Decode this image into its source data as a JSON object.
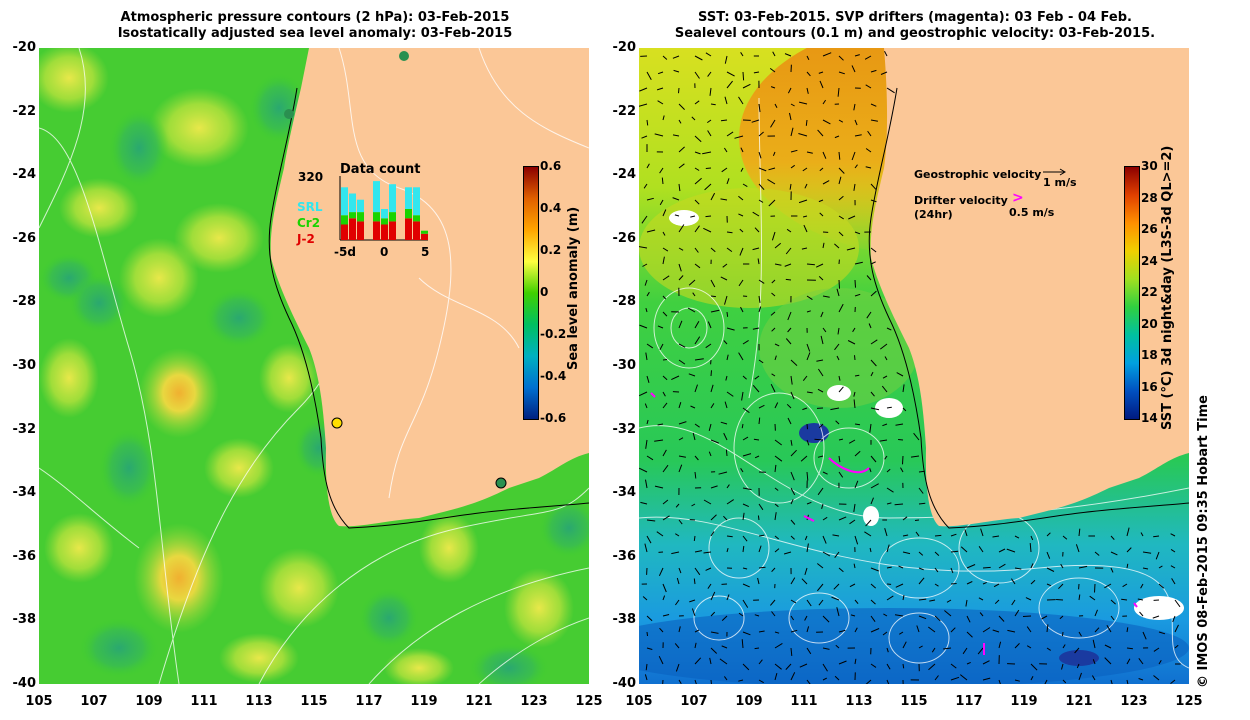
{
  "left_panel": {
    "title_line1": "Atmospheric pressure contours (2 hPa): 03-Feb-2015",
    "title_line2": "Isostatically adjusted sea level anomaly: 03-Feb-2015",
    "inset": {
      "label_320": "320",
      "title": "Data count",
      "legend": [
        {
          "name": "SRL",
          "color": "#33e6ee"
        },
        {
          "name": "Cr2",
          "color": "#19d300"
        },
        {
          "name": "J-2",
          "color": "#e00000"
        }
      ],
      "xticks": [
        "-5d",
        "0",
        "5"
      ],
      "bars": [
        {
          "day": -5,
          "J-2": 0.25,
          "Cr2": 0.15,
          "SRL": 0.45
        },
        {
          "day": -4,
          "J-2": 0.35,
          "Cr2": 0.1,
          "SRL": 0.3
        },
        {
          "day": -3,
          "J-2": 0.3,
          "Cr2": 0.15,
          "SRL": 0.2
        },
        {
          "day": -2,
          "J-2": 0.0,
          "Cr2": 0.0,
          "SRL": 0.0
        },
        {
          "day": -1,
          "J-2": 0.3,
          "Cr2": 0.15,
          "SRL": 0.5
        },
        {
          "day": 0,
          "J-2": 0.25,
          "Cr2": 0.1,
          "SRL": 0.15
        },
        {
          "day": 1,
          "J-2": 0.3,
          "Cr2": 0.15,
          "SRL": 0.45
        },
        {
          "day": 2,
          "J-2": 0.0,
          "Cr2": 0.0,
          "SRL": 0.0
        },
        {
          "day": 3,
          "J-2": 0.35,
          "Cr2": 0.15,
          "SRL": 0.35
        },
        {
          "day": 4,
          "J-2": 0.3,
          "Cr2": 0.1,
          "SRL": 0.45
        },
        {
          "day": 5,
          "J-2": 0.1,
          "Cr2": 0.05,
          "SRL": 0.0
        }
      ]
    },
    "colorbar": {
      "label": "Sea level anomaly (m)",
      "ticks": [
        "0.6",
        "0.4",
        "0.2",
        "0",
        "-0.2",
        "-0.4",
        "-0.6"
      ],
      "colors": [
        "#8b0000",
        "#e06000",
        "#ffa500",
        "#ffff40",
        "#40d000",
        "#00c060",
        "#00b0c0",
        "#0070d0",
        "#002080"
      ]
    }
  },
  "right_panel": {
    "title_line1": "SST: 03-Feb-2015. SVP drifters (magenta): 03 Feb - 04 Feb.",
    "title_line2": "Sealevel contours (0.1 m) and geostrophic velocity: 03-Feb-2015.",
    "legend": {
      "geostrophic_label": "Geostrophic velocity",
      "geostrophic_scale": "1 m/s",
      "drifter_label": "Drifter velocity",
      "drifter_sub": "(24hr)",
      "drifter_scale": "0.5 m/s",
      "drifter_color": "#ff00ff"
    },
    "colorbar": {
      "label": "SST (°C) 3d night&day (L3S-3d QL>=2)",
      "ticks": [
        "30",
        "28",
        "26",
        "24",
        "22",
        "20",
        "18",
        "16",
        "14"
      ],
      "colors": [
        "#8b0000",
        "#e04000",
        "#ff9000",
        "#f0d000",
        "#a0e020",
        "#30d040",
        "#00c0a0",
        "#00a0e0",
        "#0050c0",
        "#001a80"
      ]
    }
  },
  "axes": {
    "x_ticks": [
      "105",
      "107",
      "109",
      "111",
      "113",
      "115",
      "117",
      "119",
      "121",
      "123",
      "125"
    ],
    "y_ticks": [
      "-20",
      "-22",
      "-24",
      "-26",
      "-28",
      "-30",
      "-32",
      "-34",
      "-36",
      "-38",
      "-40"
    ]
  },
  "credit": "© IMOS 08-Feb-2015 09:35 Hobart Time",
  "colors": {
    "land": "#fbc797",
    "ocean_green": "#3ecf2a",
    "contour": "#ffffff"
  }
}
